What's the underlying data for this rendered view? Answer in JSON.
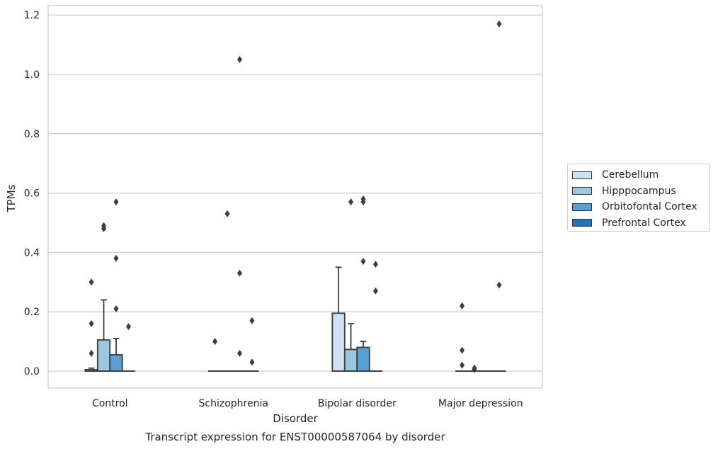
{
  "chart_data": {
    "type": "box",
    "caption": "Transcript expression for ENST00000587064 by disorder",
    "xlabel": "Disorder",
    "ylabel": "TPMs",
    "ylim": [
      -0.057,
      1.225
    ],
    "yticks": [
      "0.0",
      "0.2",
      "0.4",
      "0.6",
      "0.8",
      "1.0",
      "1.2"
    ],
    "grid": "horizontal",
    "legend_position": "right",
    "categories": [
      "Control",
      "Schizophrenia",
      "Bipolar disorder",
      "Major depression"
    ],
    "series": [
      {
        "name": "Cerebellum",
        "color": "#d0e1f2",
        "boxes": [
          {
            "q1": 0.0,
            "median": 0.0,
            "q3": 0.005,
            "whisker_low": 0.0,
            "whisker_high": 0.01,
            "outliers": [
              0.06,
              0.16,
              0.3
            ]
          },
          {
            "q1": 0.0,
            "median": 0.0,
            "q3": 0.0,
            "whisker_low": 0.0,
            "whisker_high": 0.0,
            "outliers": [
              0.1
            ]
          },
          {
            "q1": 0.0,
            "median": 0.0,
            "q3": 0.195,
            "whisker_low": 0.0,
            "whisker_high": 0.35,
            "outliers": []
          },
          {
            "q1": 0.0,
            "median": 0.0,
            "q3": 0.0,
            "whisker_low": 0.0,
            "whisker_high": 0.0,
            "outliers": [
              0.02,
              0.07,
              0.22
            ]
          }
        ]
      },
      {
        "name": "Hipppocampus",
        "color": "#9ac8e0",
        "boxes": [
          {
            "q1": 0.0,
            "median": 0.0,
            "q3": 0.105,
            "whisker_low": 0.0,
            "whisker_high": 0.24,
            "outliers": [
              0.48,
              0.49
            ]
          },
          {
            "q1": 0.0,
            "median": 0.0,
            "q3": 0.0,
            "whisker_low": 0.0,
            "whisker_high": 0.0,
            "outliers": [
              0.53
            ]
          },
          {
            "q1": 0.0,
            "median": 0.0,
            "q3": 0.073,
            "whisker_low": 0.0,
            "whisker_high": 0.16,
            "outliers": [
              0.57
            ]
          },
          {
            "q1": 0.0,
            "median": 0.0,
            "q3": 0.0,
            "whisker_low": 0.0,
            "whisker_high": 0.0,
            "outliers": [
              0.005,
              0.01
            ]
          }
        ]
      },
      {
        "name": "Orbitofontal Cortex",
        "color": "#5a9fcd",
        "boxes": [
          {
            "q1": 0.0,
            "median": 0.0,
            "q3": 0.055,
            "whisker_low": 0.0,
            "whisker_high": 0.11,
            "outliers": [
              0.21,
              0.38,
              0.57
            ]
          },
          {
            "q1": 0.0,
            "median": 0.0,
            "q3": 0.0,
            "whisker_low": 0.0,
            "whisker_high": 0.0,
            "outliers": [
              0.06,
              0.33,
              1.05
            ]
          },
          {
            "q1": 0.0,
            "median": 0.0,
            "q3": 0.08,
            "whisker_low": 0.0,
            "whisker_high": 0.1,
            "outliers": [
              0.37,
              0.57,
              0.58
            ]
          },
          {
            "q1": 0.0,
            "median": 0.0,
            "q3": 0.0,
            "whisker_low": 0.0,
            "whisker_high": 0.0,
            "outliers": []
          }
        ]
      },
      {
        "name": "Prefrontal Cortex",
        "color": "#2a71b2",
        "boxes": [
          {
            "q1": 0.0,
            "median": 0.0,
            "q3": 0.0,
            "whisker_low": 0.0,
            "whisker_high": 0.0,
            "outliers": [
              0.15
            ]
          },
          {
            "q1": 0.0,
            "median": 0.0,
            "q3": 0.0,
            "whisker_low": 0.0,
            "whisker_high": 0.0,
            "outliers": [
              0.03,
              0.17
            ]
          },
          {
            "q1": 0.0,
            "median": 0.0,
            "q3": 0.0,
            "whisker_low": 0.0,
            "whisker_high": 0.0,
            "outliers": [
              0.27,
              0.36
            ]
          },
          {
            "q1": 0.0,
            "median": 0.0,
            "q3": 0.0,
            "whisker_low": 0.0,
            "whisker_high": 0.0,
            "outliers": [
              0.29,
              1.17
            ]
          }
        ]
      }
    ]
  }
}
